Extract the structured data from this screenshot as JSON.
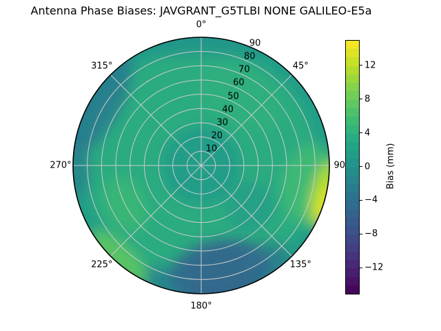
{
  "title": "Antenna Phase Biases: JAVGRANT_G5TLBI NONE GALILEO-E5a",
  "background_color": "#ffffff",
  "chart_data": {
    "type": "heatmap",
    "projection": "polar",
    "title": "Antenna Phase Biases: JAVGRANT_G5TLBI NONE GALILEO-E5a",
    "angular_axis": {
      "direction": "clockwise",
      "zero_location": "top",
      "tick_angles_deg": [
        0,
        45,
        90,
        135,
        180,
        225,
        270,
        315
      ],
      "tick_labels": [
        "0°",
        "45°",
        "90°",
        "135°",
        "180°",
        "225°",
        "270°",
        "315°"
      ]
    },
    "radial_axis": {
      "range": [
        0,
        90
      ],
      "tick_values": [
        10,
        20,
        30,
        40,
        50,
        60,
        70,
        80,
        90
      ],
      "tick_labels": [
        "10",
        "20",
        "30",
        "40",
        "50",
        "60",
        "70",
        "80",
        "90"
      ],
      "label_angle_deg": 22.5
    },
    "grid": {
      "on": true,
      "color": "#cccccc",
      "outline_color": "#000000"
    },
    "colorbar": {
      "label": "Bias (mm)",
      "tick_values": [
        12,
        8,
        4,
        0,
        -4,
        -8,
        -12
      ],
      "tick_labels": [
        "12",
        "8",
        "4",
        "0",
        "−4",
        "−8",
        "−12"
      ],
      "vmin": -15,
      "vmax": 15,
      "n_levels": 30,
      "colormap": "viridis"
    },
    "colormap_stops": [
      "#440154",
      "#482475",
      "#414487",
      "#355f8d",
      "#2a788e",
      "#21918c",
      "#22a884",
      "#44bf70",
      "#7ad151",
      "#bddf26",
      "#fde725"
    ],
    "field": {
      "units": "mm",
      "base_value_mm": 1.5,
      "features": [
        {
          "kind": "ring",
          "r_mid": 55,
          "r_width": 55,
          "value_mm": 4,
          "opacity": 0.7,
          "note": "greenish mid-elevation ring"
        },
        {
          "kind": "blob",
          "az_deg": 30,
          "r": 55,
          "value_mm": 4.5,
          "tang_deg": 70,
          "rad": 40,
          "opacity": 0.5,
          "note": "green upper-right sector"
        },
        {
          "kind": "blob",
          "az_deg": 0,
          "r": 0,
          "value_mm": 1.5,
          "tang_deg": 0,
          "rad": 46,
          "opacity": 0.85,
          "note": "teal center"
        },
        {
          "kind": "blob",
          "az_deg": 0,
          "r": 88,
          "value_mm": -0.5,
          "tang_deg": 75,
          "rad": 24,
          "opacity": 0.5,
          "note": "teal northern rim"
        },
        {
          "kind": "blob",
          "az_deg": 170,
          "r": 76,
          "value_mm": -5.5,
          "tang_deg": 55,
          "rad": 46,
          "opacity": 0.9,
          "note": "dark blue minimum near south rim"
        },
        {
          "kind": "blob",
          "az_deg": 147,
          "r": 82,
          "value_mm": -4,
          "tang_deg": 26,
          "rad": 28,
          "opacity": 0.6
        },
        {
          "kind": "blob",
          "az_deg": 197,
          "r": 86,
          "value_mm": -3.5,
          "tang_deg": 24,
          "rad": 24,
          "opacity": 0.55
        },
        {
          "kind": "blob",
          "az_deg": 300,
          "r": 83,
          "value_mm": -3,
          "tang_deg": 55,
          "rad": 30,
          "opacity": 0.8,
          "note": "blue northwest rim"
        },
        {
          "kind": "blob",
          "az_deg": 268,
          "r": 87,
          "value_mm": -2.5,
          "tang_deg": 26,
          "rad": 20,
          "opacity": 0.6
        },
        {
          "kind": "blob",
          "az_deg": 130,
          "r": 45,
          "value_mm": 0.5,
          "tang_deg": 45,
          "rad": 34,
          "opacity": 0.5
        },
        {
          "kind": "blob",
          "az_deg": 100,
          "r": 78,
          "value_mm": 6,
          "tang_deg": 42,
          "rad": 40,
          "opacity": 0.7,
          "note": "green glow east rim"
        },
        {
          "kind": "blob",
          "az_deg": 103,
          "r": 88,
          "value_mm": 11.5,
          "tang_deg": 30,
          "rad": 17,
          "opacity": 0.95,
          "note": "yellow-green streak east rim"
        },
        {
          "kind": "blob",
          "az_deg": 107,
          "r": 92,
          "value_mm": 14,
          "tang_deg": 16,
          "rad": 12,
          "opacity": 0.9,
          "note": "maximum ~12-14 mm"
        },
        {
          "kind": "blob",
          "az_deg": 222,
          "r": 87,
          "value_mm": 7.5,
          "tang_deg": 34,
          "rad": 19,
          "opacity": 0.9,
          "note": "bright green southwest rim"
        },
        {
          "kind": "blob",
          "az_deg": 243,
          "r": 60,
          "value_mm": 5.5,
          "tang_deg": 38,
          "rad": 28,
          "opacity": 0.7
        }
      ]
    }
  }
}
